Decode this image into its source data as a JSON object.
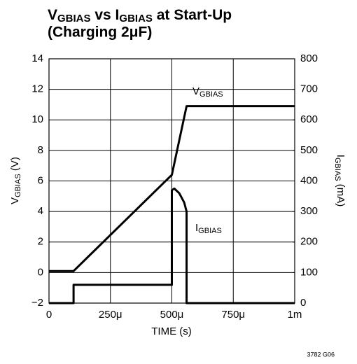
{
  "chart_data": {
    "type": "line",
    "title": {
      "line1": [
        "V",
        "GBIAS",
        " vs I",
        "GBIAS",
        " at Start-Up"
      ],
      "line2": "(Charging 2μF)"
    },
    "x_label": "TIME (s)",
    "y_label": [
      "V",
      "GBIAS",
      " (V)"
    ],
    "y2_label": [
      "I",
      "GBIAS",
      " (mA)"
    ],
    "footnote": "3782 G06",
    "xlim": [
      0,
      0.001
    ],
    "xticks": [
      0,
      {
        "value": 0.00025,
        "label": "250μ"
      },
      {
        "value": 0.0005,
        "label": "500μ"
      },
      {
        "value": 0.00075,
        "label": "750μ"
      },
      {
        "value": 0.001,
        "label": "1m"
      }
    ],
    "ylim": [
      -2,
      14
    ],
    "yticks": [
      {
        "value": -2,
        "label": "−2"
      },
      0,
      2,
      4,
      6,
      8,
      10,
      12,
      14
    ],
    "y2lim": [
      0,
      800
    ],
    "y2ticks": [
      0,
      100,
      200,
      300,
      400,
      500,
      600,
      700,
      800
    ],
    "grid": true,
    "series": [
      {
        "label": [
          "V",
          "GBIAS"
        ],
        "color": "#000000",
        "x": [
          0,
          0.0001,
          0.0005,
          0.00056,
          0.001
        ],
        "values": [
          0.1,
          0.1,
          6.4,
          10.9,
          10.9
        ]
      },
      {
        "label": [
          "I",
          "GBIAS"
        ],
        "color": "#000000",
        "axis": "y2",
        "x": [
          0,
          0.0001,
          0.0001,
          0.0005,
          0.0005,
          0.00051,
          0.00053,
          0.00055,
          0.00056,
          0.00056,
          0.001
        ],
        "values": [
          0,
          0,
          60,
          60,
          370,
          375,
          360,
          330,
          300,
          0,
          0
        ]
      }
    ]
  }
}
